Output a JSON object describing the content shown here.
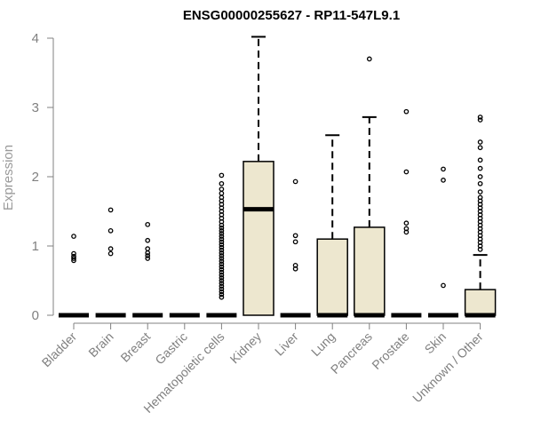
{
  "chart_data": {
    "type": "boxplot",
    "title": "ENSG00000255627 - RP11-547L9.1",
    "xlabel": "",
    "ylabel": "Expression",
    "ylim": [
      0,
      4
    ],
    "yticks": [
      "0",
      "1",
      "2",
      "3",
      "4"
    ],
    "grid": false,
    "legend": "none",
    "colors": {
      "box_fill": "#ede7cf",
      "stroke": "#000000",
      "axis": "#808080"
    },
    "categories": [
      "Bladder",
      "Brain",
      "Breast",
      "Gastric",
      "Hematopoietic cells",
      "Kidney",
      "Liver",
      "Lung",
      "Pancreas",
      "Prostate",
      "Skin",
      "Unknown / Other"
    ],
    "boxes": [
      {
        "q1": 0,
        "median": 0,
        "q3": 0,
        "whisker_low": 0,
        "whisker_high": 0,
        "outliers": [
          1.14,
          0.89,
          0.85,
          0.82,
          0.79
        ]
      },
      {
        "q1": 0,
        "median": 0,
        "q3": 0,
        "whisker_low": 0,
        "whisker_high": 0,
        "outliers": [
          1.52,
          1.22,
          0.96,
          0.89
        ]
      },
      {
        "q1": 0,
        "median": 0,
        "q3": 0,
        "whisker_low": 0,
        "whisker_high": 0,
        "outliers": [
          1.31,
          1.08,
          0.96,
          0.9,
          0.86,
          0.82
        ]
      },
      {
        "q1": 0,
        "median": 0,
        "q3": 0,
        "whisker_low": 0,
        "whisker_high": 0,
        "outliers": []
      },
      {
        "q1": 0,
        "median": 0,
        "q3": 0,
        "whisker_low": 0,
        "whisker_high": 0,
        "outliers": [
          2.02,
          1.9,
          1.82,
          1.76,
          1.7,
          1.65,
          1.6,
          1.55,
          1.5,
          1.45,
          1.4,
          1.35,
          1.3,
          1.26,
          1.22,
          1.18,
          1.14,
          1.1,
          1.06,
          1.02,
          0.98,
          0.94,
          0.9,
          0.86,
          0.82,
          0.78,
          0.74,
          0.7,
          0.66,
          0.62,
          0.58,
          0.54,
          0.5,
          0.46,
          0.42,
          0.38,
          0.34,
          0.3,
          0.26
        ]
      },
      {
        "q1": 0,
        "median": 1.53,
        "q3": 2.22,
        "whisker_low": 0,
        "whisker_high": 4.02,
        "outliers": []
      },
      {
        "q1": 0,
        "median": 0,
        "q3": 0,
        "whisker_low": 0,
        "whisker_high": 0,
        "outliers": [
          1.93,
          1.15,
          1.06,
          0.72,
          0.67
        ]
      },
      {
        "q1": 0,
        "median": 0,
        "q3": 1.1,
        "whisker_low": 0,
        "whisker_high": 2.6,
        "outliers": []
      },
      {
        "q1": 0,
        "median": 0,
        "q3": 1.27,
        "whisker_low": 0,
        "whisker_high": 2.86,
        "outliers": [
          3.7
        ]
      },
      {
        "q1": 0,
        "median": 0,
        "q3": 0,
        "whisker_low": 0,
        "whisker_high": 0,
        "outliers": [
          2.94,
          2.07,
          1.33,
          1.25,
          1.2
        ]
      },
      {
        "q1": 0,
        "median": 0,
        "q3": 0,
        "whisker_low": 0,
        "whisker_high": 0,
        "outliers": [
          2.11,
          1.95,
          0.43
        ]
      },
      {
        "q1": 0,
        "median": 0,
        "q3": 0.37,
        "whisker_low": 0,
        "whisker_high": 0.87,
        "outliers": [
          2.86,
          2.82,
          2.5,
          2.42,
          2.24,
          2.12,
          2.0,
          1.9,
          1.78,
          1.7,
          1.65,
          1.6,
          1.55,
          1.5,
          1.45,
          1.4,
          1.35,
          1.3,
          1.25,
          1.2,
          1.15,
          1.1,
          1.05,
          1.0,
          0.95
        ]
      }
    ]
  }
}
